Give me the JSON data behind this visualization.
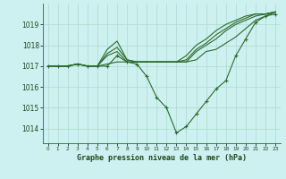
{
  "title": "Graphe pression niveau de la mer (hPa)",
  "bg_color": "#cdf0f0",
  "grid_color": "#aaddcc",
  "line_color": "#2d6b2d",
  "xlim": [
    -0.5,
    23.5
  ],
  "ylim": [
    1013.3,
    1020.0
  ],
  "yticks": [
    1014,
    1015,
    1016,
    1017,
    1018,
    1019
  ],
  "xticks": [
    0,
    1,
    2,
    3,
    4,
    5,
    6,
    7,
    8,
    9,
    10,
    11,
    12,
    13,
    14,
    15,
    16,
    17,
    18,
    19,
    20,
    21,
    22,
    23
  ],
  "series_with_markers": [
    1017.0,
    1017.0,
    1017.0,
    1017.1,
    1017.0,
    1017.0,
    1017.0,
    1017.5,
    1017.2,
    1017.1,
    1016.5,
    1015.5,
    1015.0,
    1013.8,
    1014.1,
    1014.7,
    1015.3,
    1015.9,
    1016.3,
    1017.5,
    1018.3,
    1019.1,
    1019.4,
    1019.5
  ],
  "series_plain": [
    [
      1017.0,
      1017.0,
      1017.0,
      1017.1,
      1017.0,
      1017.0,
      1017.8,
      1018.2,
      1017.3,
      1017.2,
      1017.2,
      1017.2,
      1017.2,
      1017.2,
      1017.5,
      1018.0,
      1018.3,
      1018.7,
      1019.0,
      1019.2,
      1019.4,
      1019.5,
      1019.5,
      1019.6
    ],
    [
      1017.0,
      1017.0,
      1017.0,
      1017.1,
      1017.0,
      1017.0,
      1017.6,
      1017.9,
      1017.3,
      1017.2,
      1017.2,
      1017.2,
      1017.2,
      1017.2,
      1017.3,
      1017.8,
      1018.1,
      1018.5,
      1018.8,
      1019.1,
      1019.3,
      1019.5,
      1019.5,
      1019.6
    ],
    [
      1017.0,
      1017.0,
      1017.0,
      1017.1,
      1017.0,
      1017.0,
      1017.5,
      1017.7,
      1017.2,
      1017.2,
      1017.2,
      1017.2,
      1017.2,
      1017.2,
      1017.2,
      1017.7,
      1018.0,
      1018.3,
      1018.7,
      1019.0,
      1019.2,
      1019.4,
      1019.5,
      1019.6
    ],
    [
      1017.0,
      1017.0,
      1017.0,
      1017.1,
      1017.0,
      1017.0,
      1017.1,
      1017.2,
      1017.2,
      1017.2,
      1017.2,
      1017.2,
      1017.2,
      1017.2,
      1017.2,
      1017.3,
      1017.7,
      1017.8,
      1018.1,
      1018.4,
      1018.8,
      1019.2,
      1019.4,
      1019.6
    ]
  ]
}
